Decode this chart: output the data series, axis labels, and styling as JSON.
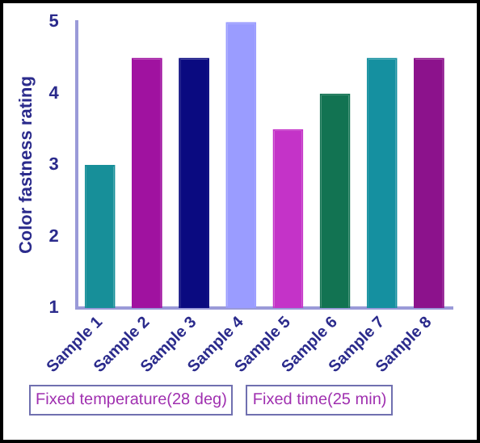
{
  "chart_data": {
    "type": "bar",
    "ylabel": "Color fastness rating",
    "categories": [
      "Sample 1",
      "Sample 2",
      "Sample 3",
      "Sample 4",
      "Sample 5",
      "Sample 6",
      "Sample 7",
      "Sample 8"
    ],
    "values": [
      3,
      4.5,
      4.5,
      5,
      3.5,
      4,
      4.5,
      4.5
    ],
    "colors": [
      "#178f99",
      "#a012a0",
      "#0a0a80",
      "#9a9cff",
      "#c433c8",
      "#127352",
      "#1590a0",
      "#8c128c"
    ],
    "ylim": [
      1,
      5
    ],
    "yticks": [
      1,
      2,
      3,
      4,
      5
    ],
    "grid": false,
    "legend": false,
    "annotations": [
      "Fixed temperature(28 deg)",
      "Fixed time(25 min)"
    ]
  }
}
